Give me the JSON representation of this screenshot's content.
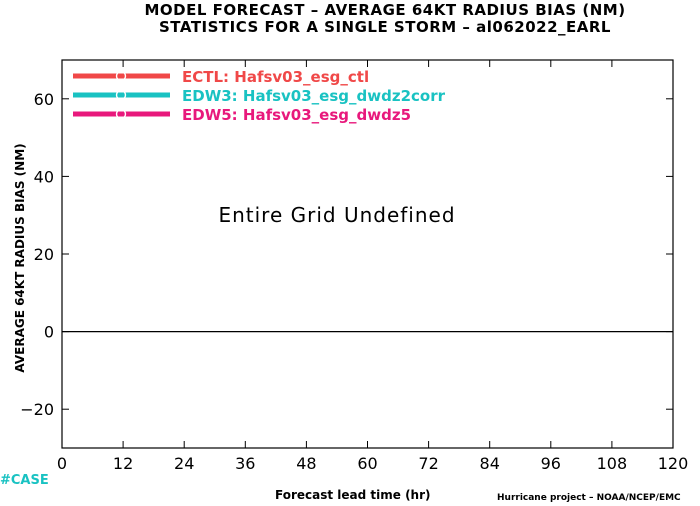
{
  "title_line1": "MODEL FORECAST – AVERAGE 64KT RADIUS BIAS (NM)",
  "title_line2": "STATISTICS FOR A SINGLE STORM – al062022_EARL",
  "case_label": "#CASE",
  "credit": "Hurricane project – NOAA/NCEP/EMC",
  "message": "Entire Grid Undefined",
  "colors": {
    "ECTL": "#f04848",
    "EDW3": "#19c2c2",
    "EDW5": "#e8187c",
    "zero_line": "#000000"
  },
  "chart_data": {
    "type": "line",
    "xlabel": "Forecast lead time (hr)",
    "ylabel": "AVERAGE 64KT RADIUS BIAS (NM)",
    "xlim": [
      0,
      120
    ],
    "ylim": [
      -30,
      70
    ],
    "x_ticks": [
      0,
      12,
      24,
      36,
      48,
      60,
      72,
      84,
      96,
      108,
      120
    ],
    "y_ticks": [
      -20,
      0,
      20,
      40,
      60
    ],
    "x_tick_labels": [
      "0",
      "12",
      "24",
      "36",
      "48",
      "60",
      "72",
      "84",
      "96",
      "108",
      "120"
    ],
    "y_tick_labels": [
      "−20",
      "0",
      "20",
      "40",
      "60"
    ],
    "grid": false,
    "legend_position": "top-left",
    "series": [
      {
        "name": "ECTL: Hafsv03_esg_ctl",
        "values": []
      },
      {
        "name": "EDW3: Hafsv03_esg_dwdz2corr",
        "values": []
      },
      {
        "name": "EDW5: Hafsv03_esg_dwdz5",
        "values": []
      }
    ]
  }
}
